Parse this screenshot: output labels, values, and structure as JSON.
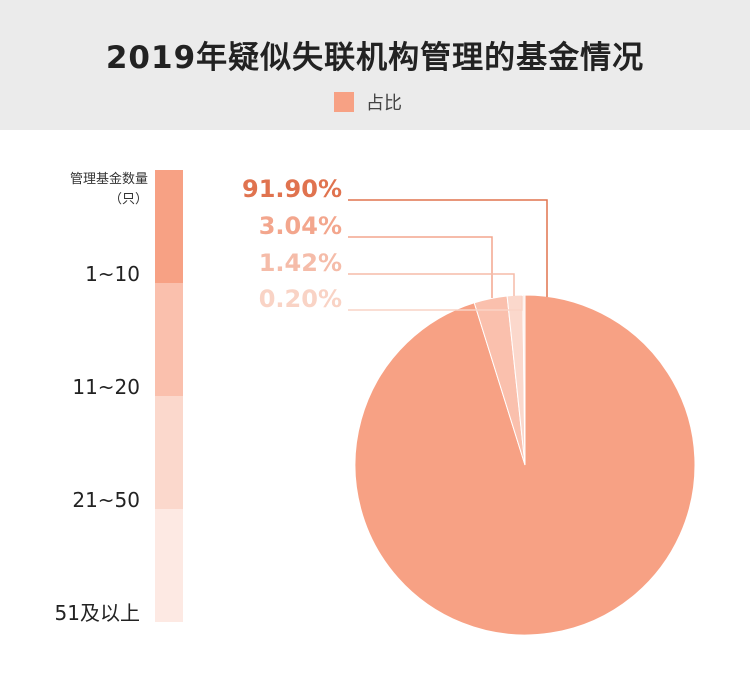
{
  "chart_data": {
    "type": "pie",
    "title": "2019年疑似失联机构管理的基金情况",
    "legend": {
      "label": "占比",
      "position": "top",
      "color": "#f7a184"
    },
    "category_heading": [
      "管理基金数量",
      "（只）"
    ],
    "categories": [
      "1~10",
      "11~20",
      "21~50",
      "51及以上"
    ],
    "values": [
      91.9,
      3.04,
      1.42,
      0.2
    ],
    "value_labels": [
      "91.90%",
      "3.04%",
      "1.42%",
      "0.20%"
    ],
    "colors": [
      "#f7a184",
      "#fac0ad",
      "#fbd8cc",
      "#fde9e3"
    ],
    "label_colors": [
      "#e0734f",
      "#f3a68d",
      "#f5bca9",
      "#f9d3c5"
    ]
  }
}
